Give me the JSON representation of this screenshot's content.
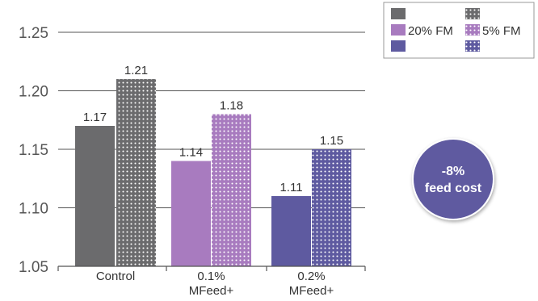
{
  "chart_data": {
    "type": "bar",
    "categories": [
      [
        "Control"
      ],
      [
        "0.1%",
        "MFeed+"
      ],
      [
        "0.2%",
        "MFeed+"
      ]
    ],
    "series": [
      {
        "name": "20% FM",
        "values": [
          1.17,
          1.14,
          1.11
        ]
      },
      {
        "name": "5% FM",
        "values": [
          1.21,
          1.18,
          1.15
        ]
      }
    ],
    "category_colors": [
      "#6b6b6d",
      "#a87bbf",
      "#5e5aa0"
    ],
    "ylim": [
      1.05,
      1.25
    ],
    "yticks": [
      "1.05",
      "1.10",
      "1.15",
      "1.20",
      "1.25"
    ],
    "grid": true,
    "legend_position": "top-right"
  },
  "badge": {
    "line1": "-8%",
    "line2": "feed cost",
    "color": "#5e5aa0"
  }
}
